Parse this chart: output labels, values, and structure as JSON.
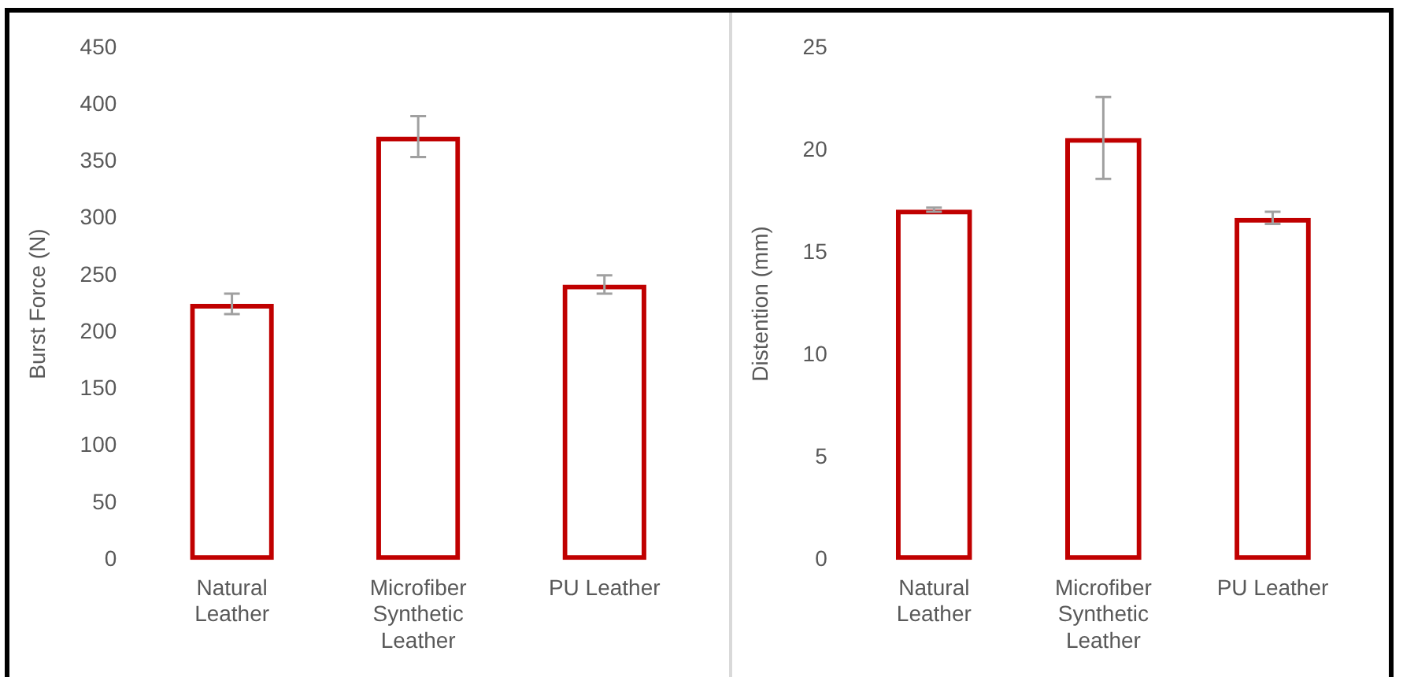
{
  "chart_data": [
    {
      "type": "bar",
      "ylabel": "Burst Force (N)",
      "categories": [
        "Natural Leather",
        "Microfiber Synthetic Leather",
        "PU Leather"
      ],
      "values": [
        225,
        372,
        242
      ],
      "errors": [
        9,
        18,
        8
      ],
      "color": "#c00000",
      "ylim": [
        0,
        450
      ],
      "yticks": [
        0,
        50,
        100,
        150,
        200,
        250,
        300,
        350,
        400,
        450
      ],
      "grid": false,
      "legend": false
    },
    {
      "type": "bar",
      "ylabel": "Distention (mm)",
      "categories": [
        "Natural Leather",
        "Microfiber Synthetic Leather",
        "PU Leather"
      ],
      "values": [
        17.1,
        20.6,
        16.7
      ],
      "errors": [
        0.1,
        2,
        0.3
      ],
      "color": "#c00000",
      "ylim": [
        0,
        25
      ],
      "yticks": [
        0,
        5,
        10,
        15,
        20,
        25
      ],
      "grid": false,
      "legend": false
    }
  ]
}
